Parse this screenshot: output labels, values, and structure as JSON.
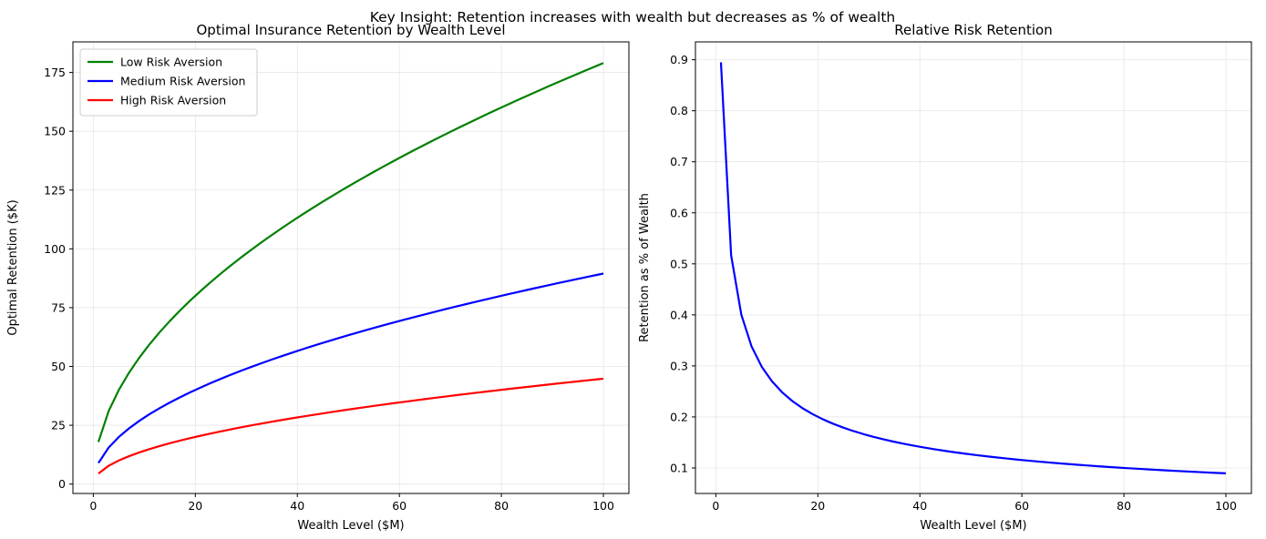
{
  "suptitle": "Key Insight: Retention increases with wealth but decreases as % of wealth",
  "colors": {
    "low": "#008000",
    "medium": "#0000ff",
    "high": "#ff0000",
    "grid": "#e6e6e6",
    "axis": "#000000"
  },
  "chart_data": [
    {
      "type": "line",
      "title": "Optimal Insurance Retention by Wealth Level",
      "xlabel": "Wealth Level ($M)",
      "ylabel": "Optimal Retention ($K)",
      "xlim": [
        -4,
        105
      ],
      "ylim": [
        -4,
        188
      ],
      "xticks": [
        0,
        20,
        40,
        60,
        80,
        100
      ],
      "yticks": [
        0,
        25,
        50,
        75,
        100,
        125,
        150,
        175
      ],
      "grid": true,
      "legend": "top-left",
      "series": [
        {
          "name": "Low Risk Aversion",
          "color": "#008000",
          "coef": 17.9,
          "x_start": 1,
          "x_end": 100,
          "x_step": 2
        },
        {
          "name": "Medium Risk Aversion",
          "color": "#0000ff",
          "coef": 8.95,
          "x_start": 1,
          "x_end": 100,
          "x_step": 2
        },
        {
          "name": "High Risk Aversion",
          "color": "#ff0000",
          "coef": 4.48,
          "x_start": 1,
          "x_end": 100,
          "x_step": 2
        }
      ]
    },
    {
      "type": "line",
      "title": "Relative Risk Retention",
      "xlabel": "Wealth Level ($M)",
      "ylabel": "Retention as % of Wealth",
      "xlim": [
        -4,
        105
      ],
      "ylim": [
        0.05,
        0.935
      ],
      "xticks": [
        0,
        20,
        40,
        60,
        80,
        100
      ],
      "yticks": [
        0.1,
        0.2,
        0.3,
        0.4,
        0.5,
        0.6,
        0.7,
        0.8,
        0.9
      ],
      "grid": true,
      "legend": "none",
      "series": [
        {
          "name": "",
          "color": "#0000ff",
          "coef": 0.895,
          "x_start": 1,
          "x_end": 100,
          "x_step": 2
        }
      ]
    }
  ]
}
